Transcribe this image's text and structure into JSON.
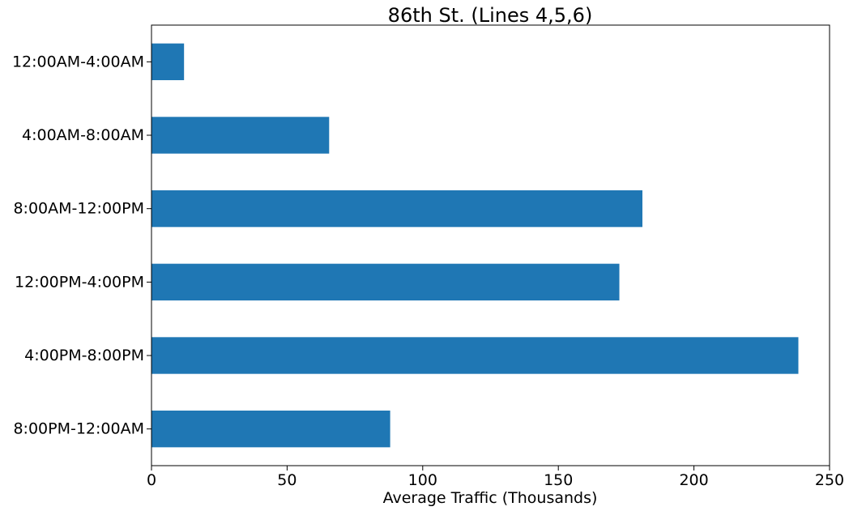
{
  "chart_data": {
    "type": "bar",
    "orientation": "horizontal",
    "title": "86th St. (Lines 4,5,6)",
    "xlabel": "Average Traffic (Thousands)",
    "ylabel": "",
    "categories": [
      "12:00AM-4:00AM",
      "4:00AM-8:00AM",
      "8:00AM-12:00PM",
      "12:00PM-4:00PM",
      "4:00PM-8:00PM",
      "8:00PM-12:00AM"
    ],
    "values": [
      12,
      65.5,
      181,
      172.5,
      238.5,
      88
    ],
    "xlim": [
      0,
      250
    ],
    "xticks": [
      0,
      50,
      100,
      150,
      200,
      250
    ],
    "bar_color": "#1f77b4",
    "grid": false,
    "legend": "none"
  }
}
